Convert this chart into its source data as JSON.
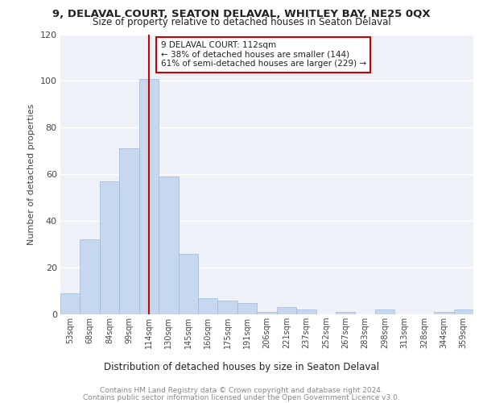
{
  "title1": "9, DELAVAL COURT, SEATON DELAVAL, WHITLEY BAY, NE25 0QX",
  "title2": "Size of property relative to detached houses in Seaton Delaval",
  "xlabel": "Distribution of detached houses by size in Seaton Delaval",
  "ylabel": "Number of detached properties",
  "categories": [
    "53sqm",
    "68sqm",
    "84sqm",
    "99sqm",
    "114sqm",
    "130sqm",
    "145sqm",
    "160sqm",
    "175sqm",
    "191sqm",
    "206sqm",
    "221sqm",
    "237sqm",
    "252sqm",
    "267sqm",
    "283sqm",
    "298sqm",
    "313sqm",
    "328sqm",
    "344sqm",
    "359sqm"
  ],
  "values": [
    9,
    32,
    57,
    71,
    101,
    59,
    26,
    7,
    6,
    5,
    1,
    3,
    2,
    0,
    1,
    0,
    2,
    0,
    0,
    1,
    2
  ],
  "bar_color": "#c5d8f0",
  "bar_edge_color": "#a0b8d8",
  "vline_x": 4,
  "vline_color": "#cc0000",
  "annotation_title": "9 DELAVAL COURT: 112sqm",
  "annotation_line1": "← 38% of detached houses are smaller (144)",
  "annotation_line2": "61% of semi-detached houses are larger (229) →",
  "annotation_box_color": "#ffffff",
  "annotation_box_edge": "#cc0000",
  "ylim": [
    0,
    120
  ],
  "yticks": [
    0,
    20,
    40,
    60,
    80,
    100,
    120
  ],
  "footer1": "Contains HM Land Registry data © Crown copyright and database right 2024.",
  "footer2": "Contains public sector information licensed under the Open Government Licence v3.0.",
  "bg_color": "#eef2f8",
  "grid_color": "#ffffff"
}
